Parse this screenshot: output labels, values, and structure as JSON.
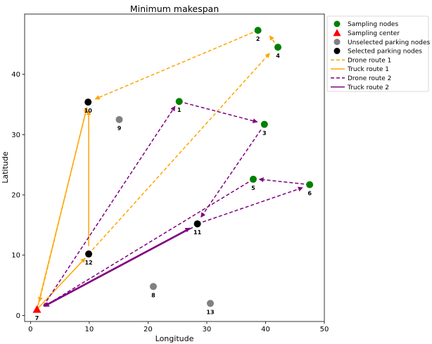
{
  "chart_data": {
    "type": "scatter",
    "title": "Minimum makespan",
    "xlabel": "Longitude",
    "ylabel": "Latitude",
    "xlim": [
      -1,
      50
    ],
    "ylim": [
      -1,
      50
    ],
    "xticks": [
      0,
      10,
      20,
      30,
      40,
      50
    ],
    "yticks": [
      0,
      10,
      20,
      30,
      40
    ],
    "grid": false,
    "legend_position": "outside-top-right",
    "nodes": [
      {
        "id": "1",
        "x": 25.3,
        "y": 35.5,
        "kind": "sampling"
      },
      {
        "id": "2",
        "x": 38.7,
        "y": 47.3,
        "kind": "sampling"
      },
      {
        "id": "3",
        "x": 39.8,
        "y": 31.7,
        "kind": "sampling"
      },
      {
        "id": "4",
        "x": 42.1,
        "y": 44.5,
        "kind": "sampling"
      },
      {
        "id": "5",
        "x": 37.9,
        "y": 22.6,
        "kind": "sampling"
      },
      {
        "id": "6",
        "x": 47.5,
        "y": 21.7,
        "kind": "sampling"
      },
      {
        "id": "7",
        "x": 1.1,
        "y": 1.0,
        "kind": "center"
      },
      {
        "id": "8",
        "x": 20.9,
        "y": 4.8,
        "kind": "unselected"
      },
      {
        "id": "9",
        "x": 15.1,
        "y": 32.5,
        "kind": "unselected"
      },
      {
        "id": "10",
        "x": 9.8,
        "y": 35.4,
        "kind": "selected"
      },
      {
        "id": "11",
        "x": 28.4,
        "y": 15.2,
        "kind": "selected"
      },
      {
        "id": "12",
        "x": 9.9,
        "y": 10.2,
        "kind": "selected"
      },
      {
        "id": "13",
        "x": 30.6,
        "y": 2.0,
        "kind": "unselected"
      }
    ],
    "routes": [
      {
        "series": "Drone route 1",
        "from": [
          9.9,
          10.2
        ],
        "to": [
          40.7,
          43.5
        ]
      },
      {
        "series": "Drone route 1",
        "from": [
          42.1,
          44.5
        ],
        "to": [
          40.7,
          46.4
        ]
      },
      {
        "series": "Drone route 1",
        "from": [
          38.7,
          47.3
        ],
        "to": [
          11.0,
          35.9
        ]
      },
      {
        "series": "Drone route 1",
        "from": [
          9.8,
          35.4
        ],
        "to": [
          1.5,
          2.3
        ]
      },
      {
        "series": "Truck route 1",
        "from": [
          1.1,
          1.0
        ],
        "to": [
          9.3,
          9.5
        ]
      },
      {
        "series": "Truck route 1",
        "from": [
          9.9,
          11.5
        ],
        "to": [
          9.9,
          34.0
        ]
      },
      {
        "series": "Truck route 1",
        "from": [
          1.1,
          1.0
        ],
        "to": [
          9.6,
          34.5
        ]
      },
      {
        "series": "Drone route 2",
        "from": [
          2.2,
          1.6
        ],
        "to": [
          24.6,
          34.7
        ]
      },
      {
        "series": "Drone route 2",
        "from": [
          25.3,
          35.5
        ],
        "to": [
          38.6,
          32.1
        ]
      },
      {
        "series": "Drone route 2",
        "from": [
          39.2,
          30.8
        ],
        "to": [
          29.0,
          16.3
        ]
      },
      {
        "series": "Drone route 2",
        "from": [
          28.4,
          15.2
        ],
        "to": [
          46.3,
          21.2
        ]
      },
      {
        "series": "Drone route 2",
        "from": [
          47.5,
          21.7
        ],
        "to": [
          38.9,
          22.6
        ]
      },
      {
        "series": "Drone route 2",
        "from": [
          37.9,
          22.6
        ],
        "to": [
          2.3,
          1.5
        ]
      },
      {
        "series": "Truck route 2",
        "from": [
          2.3,
          1.6
        ],
        "to": [
          27.1,
          14.5
        ]
      },
      {
        "series": "Truck route 2",
        "from": [
          27.6,
          14.6
        ],
        "to": [
          2.4,
          1.5
        ]
      }
    ],
    "legend": [
      {
        "label": "Sampling nodes",
        "kind": "marker",
        "shape": "circle",
        "color": "#008000"
      },
      {
        "label": "Sampling center",
        "kind": "marker",
        "shape": "triangle",
        "color": "#ff0000"
      },
      {
        "label": "Unselected parking nodes",
        "kind": "marker",
        "shape": "circle",
        "color": "#808080"
      },
      {
        "label": "Selected parking nodes",
        "kind": "marker",
        "shape": "circle",
        "color": "#000000"
      },
      {
        "label": "Drone route 1",
        "kind": "line",
        "dashed": true,
        "color": "#ffa500"
      },
      {
        "label": "Truck route 1",
        "kind": "line",
        "dashed": false,
        "color": "#ffa500"
      },
      {
        "label": "Drone route 2",
        "kind": "line",
        "dashed": true,
        "color": "#800080"
      },
      {
        "label": "Truck route 2",
        "kind": "line",
        "dashed": false,
        "color": "#800080"
      }
    ],
    "colors": {
      "sampling": "#008000",
      "center": "#ff0000",
      "unselected": "#808080",
      "selected": "#000000",
      "route1": "#ffa500",
      "route2": "#800080"
    }
  }
}
